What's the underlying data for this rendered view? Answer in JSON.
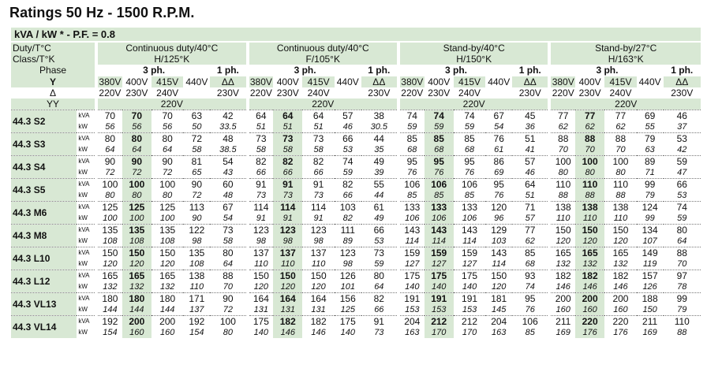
{
  "title": "Ratings 50 Hz - 1500 R.P.M.",
  "subtitle": "kVA / kW * - P.F. = 0.8",
  "labels": {
    "duty": "Duty/T°C",
    "class": "Class/T°K",
    "phase": "Phase",
    "y": "Y",
    "delta": "Δ",
    "yy": "YY",
    "kva": "kVA",
    "kw": "kW"
  },
  "groups": [
    {
      "duty": "Continuous duty/40°C",
      "class": "H/125°K"
    },
    {
      "duty": "Continuous duty/40°C",
      "class": "F/105°K"
    },
    {
      "duty": "Stand-by/40°C",
      "class": "H/150°K"
    },
    {
      "duty": "Stand-by/27°C",
      "class": "H/163°K"
    }
  ],
  "phase": {
    "three": "3 ph.",
    "one": "1 ph."
  },
  "voltages": {
    "y": [
      "380V",
      "400V",
      "415V",
      "440V",
      "ΔΔ"
    ],
    "delta": [
      "220V",
      "230V",
      "240V",
      "",
      "230V"
    ],
    "yy": "220V"
  },
  "models": [
    {
      "name": "44.3 S2",
      "kva": [
        [
          70,
          70,
          70,
          63,
          42
        ],
        [
          64,
          64,
          64,
          57,
          38
        ],
        [
          74,
          74,
          74,
          67,
          45
        ],
        [
          77,
          77,
          77,
          69,
          46
        ]
      ],
      "kw": [
        [
          "56",
          "56",
          "56",
          "50",
          "33.5"
        ],
        [
          "51",
          "51",
          "51",
          "46",
          "30.5"
        ],
        [
          "59",
          "59",
          "59",
          "54",
          "36"
        ],
        [
          "62",
          "62",
          "62",
          "55",
          "37"
        ]
      ]
    },
    {
      "name": "44.3 S3",
      "kva": [
        [
          80,
          80,
          80,
          72,
          48
        ],
        [
          73,
          73,
          73,
          66,
          44
        ],
        [
          85,
          85,
          85,
          76,
          51
        ],
        [
          88,
          88,
          88,
          79,
          53
        ]
      ],
      "kw": [
        [
          "64",
          "64",
          "64",
          "58",
          "38.5"
        ],
        [
          "58",
          "58",
          "58",
          "53",
          "35"
        ],
        [
          "68",
          "68",
          "68",
          "61",
          "41"
        ],
        [
          "70",
          "70",
          "70",
          "63",
          "42"
        ]
      ]
    },
    {
      "name": "44.3 S4",
      "kva": [
        [
          90,
          90,
          90,
          81,
          54
        ],
        [
          82,
          82,
          82,
          74,
          49
        ],
        [
          95,
          95,
          95,
          86,
          57
        ],
        [
          100,
          100,
          100,
          89,
          59
        ]
      ],
      "kw": [
        [
          "72",
          "72",
          "72",
          "65",
          "43"
        ],
        [
          "66",
          "66",
          "66",
          "59",
          "39"
        ],
        [
          "76",
          "76",
          "76",
          "69",
          "46"
        ],
        [
          "80",
          "80",
          "80",
          "71",
          "47"
        ]
      ]
    },
    {
      "name": "44.3 S5",
      "kva": [
        [
          100,
          100,
          100,
          90,
          60
        ],
        [
          91,
          91,
          91,
          82,
          55
        ],
        [
          106,
          106,
          106,
          95,
          64
        ],
        [
          110,
          110,
          110,
          99,
          66
        ]
      ],
      "kw": [
        [
          "80",
          "80",
          "80",
          "72",
          "48"
        ],
        [
          "73",
          "73",
          "73",
          "66",
          "44"
        ],
        [
          "85",
          "85",
          "85",
          "76",
          "51"
        ],
        [
          "88",
          "88",
          "88",
          "79",
          "53"
        ]
      ]
    },
    {
      "name": "44.3 M6",
      "kva": [
        [
          125,
          125,
          125,
          113,
          67
        ],
        [
          114,
          114,
          114,
          103,
          61
        ],
        [
          133,
          133,
          133,
          120,
          71
        ],
        [
          138,
          138,
          138,
          124,
          74
        ]
      ],
      "kw": [
        [
          "100",
          "100",
          "100",
          "90",
          "54"
        ],
        [
          "91",
          "91",
          "91",
          "82",
          "49"
        ],
        [
          "106",
          "106",
          "106",
          "96",
          "57"
        ],
        [
          "110",
          "110",
          "110",
          "99",
          "59"
        ]
      ]
    },
    {
      "name": "44.3 M8",
      "kva": [
        [
          135,
          135,
          135,
          122,
          73
        ],
        [
          123,
          123,
          123,
          111,
          66
        ],
        [
          143,
          143,
          143,
          129,
          77
        ],
        [
          150,
          150,
          150,
          134,
          80
        ]
      ],
      "kw": [
        [
          "108",
          "108",
          "108",
          "98",
          "58"
        ],
        [
          "98",
          "98",
          "98",
          "89",
          "53"
        ],
        [
          "114",
          "114",
          "114",
          "103",
          "62"
        ],
        [
          "120",
          "120",
          "120",
          "107",
          "64"
        ]
      ]
    },
    {
      "name": "44.3 L10",
      "kva": [
        [
          150,
          150,
          150,
          135,
          80
        ],
        [
          137,
          137,
          137,
          123,
          73
        ],
        [
          159,
          159,
          159,
          143,
          85
        ],
        [
          165,
          165,
          165,
          149,
          88
        ]
      ],
      "kw": [
        [
          "120",
          "120",
          "120",
          "108",
          "64"
        ],
        [
          "110",
          "110",
          "110",
          "98",
          "59"
        ],
        [
          "127",
          "127",
          "127",
          "114",
          "68"
        ],
        [
          "132",
          "132",
          "132",
          "119",
          "70"
        ]
      ]
    },
    {
      "name": "44.3 L12",
      "kva": [
        [
          165,
          165,
          165,
          138,
          88
        ],
        [
          150,
          150,
          150,
          126,
          80
        ],
        [
          175,
          175,
          175,
          150,
          93
        ],
        [
          182,
          182,
          182,
          157,
          97
        ]
      ],
      "kw": [
        [
          "132",
          "132",
          "132",
          "110",
          "70"
        ],
        [
          "120",
          "120",
          "120",
          "101",
          "64"
        ],
        [
          "140",
          "140",
          "140",
          "120",
          "74"
        ],
        [
          "146",
          "146",
          "146",
          "126",
          "78"
        ]
      ]
    },
    {
      "name": "44.3 VL13",
      "kva": [
        [
          180,
          180,
          180,
          171,
          90
        ],
        [
          164,
          164,
          164,
          156,
          82
        ],
        [
          191,
          191,
          191,
          181,
          95
        ],
        [
          200,
          200,
          200,
          188,
          99
        ]
      ],
      "kw": [
        [
          "144",
          "144",
          "144",
          "137",
          "72"
        ],
        [
          "131",
          "131",
          "131",
          "125",
          "66"
        ],
        [
          "153",
          "153",
          "153",
          "145",
          "76"
        ],
        [
          "160",
          "160",
          "160",
          "150",
          "79"
        ]
      ]
    },
    {
      "name": "44.3 VL14",
      "kva": [
        [
          192,
          200,
          200,
          192,
          100
        ],
        [
          175,
          182,
          182,
          175,
          91
        ],
        [
          204,
          212,
          212,
          204,
          106
        ],
        [
          211,
          220,
          220,
          211,
          110
        ]
      ],
      "kw": [
        [
          "154",
          "160",
          "160",
          "154",
          "80"
        ],
        [
          "140",
          "146",
          "146",
          "140",
          "73"
        ],
        [
          "163",
          "170",
          "170",
          "163",
          "85"
        ],
        [
          "169",
          "176",
          "176",
          "169",
          "88"
        ]
      ]
    }
  ]
}
